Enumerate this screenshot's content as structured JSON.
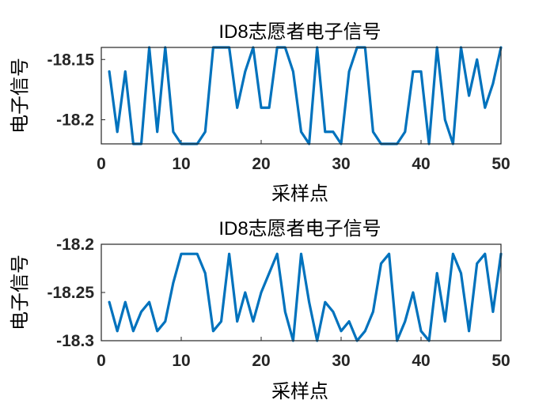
{
  "chart_data": [
    {
      "type": "line",
      "title": "ID8志愿者电子信号",
      "xlabel": "采样点",
      "ylabel": "电子信号",
      "xlim": [
        0,
        50
      ],
      "ylim": [
        -18.22,
        -18.14
      ],
      "xticks": [
        0,
        10,
        20,
        30,
        40,
        50
      ],
      "yticks": [
        -18.2,
        -18.15
      ],
      "ytick_labels": [
        "-18.2",
        "-18.15"
      ],
      "grid": false,
      "color": "#0072BD",
      "x": [
        1,
        2,
        3,
        4,
        5,
        6,
        7,
        8,
        9,
        10,
        11,
        12,
        13,
        14,
        15,
        16,
        17,
        18,
        19,
        20,
        21,
        22,
        23,
        24,
        25,
        26,
        27,
        28,
        29,
        30,
        31,
        32,
        33,
        34,
        35,
        36,
        37,
        38,
        39,
        40,
        41,
        42,
        43,
        44,
        45,
        46,
        47,
        48,
        49,
        50
      ],
      "values": [
        -18.16,
        -18.21,
        -18.16,
        -18.22,
        -18.22,
        -18.14,
        -18.21,
        -18.14,
        -18.21,
        -18.22,
        -18.22,
        -18.22,
        -18.21,
        -18.14,
        -18.14,
        -18.14,
        -18.19,
        -18.16,
        -18.14,
        -18.19,
        -18.19,
        -18.14,
        -18.14,
        -18.16,
        -18.21,
        -18.22,
        -18.14,
        -18.21,
        -18.21,
        -18.22,
        -18.16,
        -18.14,
        -18.14,
        -18.21,
        -18.22,
        -18.22,
        -18.22,
        -18.21,
        -18.16,
        -18.16,
        -18.22,
        -18.14,
        -18.2,
        -18.22,
        -18.14,
        -18.18,
        -18.15,
        -18.19,
        -18.17,
        -18.14
      ]
    },
    {
      "type": "line",
      "title": "ID8志愿者电子信号",
      "xlabel": "采样点",
      "ylabel": "电子信号",
      "xlim": [
        0,
        50
      ],
      "ylim": [
        -18.3,
        -18.2
      ],
      "xticks": [
        0,
        10,
        20,
        30,
        40,
        50
      ],
      "yticks": [
        -18.3,
        -18.25,
        -18.2
      ],
      "ytick_labels": [
        "-18.3",
        "-18.25",
        "-18.2"
      ],
      "grid": false,
      "color": "#0072BD",
      "x": [
        1,
        2,
        3,
        4,
        5,
        6,
        7,
        8,
        9,
        10,
        11,
        12,
        13,
        14,
        15,
        16,
        17,
        18,
        19,
        20,
        21,
        22,
        23,
        24,
        25,
        26,
        27,
        28,
        29,
        30,
        31,
        32,
        33,
        34,
        35,
        36,
        37,
        38,
        39,
        40,
        41,
        42,
        43,
        44,
        45,
        46,
        47,
        48,
        49,
        50
      ],
      "values": [
        -18.26,
        -18.29,
        -18.26,
        -18.29,
        -18.27,
        -18.26,
        -18.29,
        -18.28,
        -18.24,
        -18.21,
        -18.21,
        -18.21,
        -18.23,
        -18.29,
        -18.28,
        -18.21,
        -18.28,
        -18.25,
        -18.28,
        -18.25,
        -18.23,
        -18.21,
        -18.27,
        -18.3,
        -18.21,
        -18.26,
        -18.3,
        -18.26,
        -18.27,
        -18.29,
        -18.28,
        -18.3,
        -18.29,
        -18.27,
        -18.22,
        -18.21,
        -18.3,
        -18.28,
        -18.25,
        -18.29,
        -18.3,
        -18.23,
        -18.28,
        -18.21,
        -18.23,
        -18.29,
        -18.22,
        -18.21,
        -18.27,
        -18.21
      ]
    }
  ]
}
